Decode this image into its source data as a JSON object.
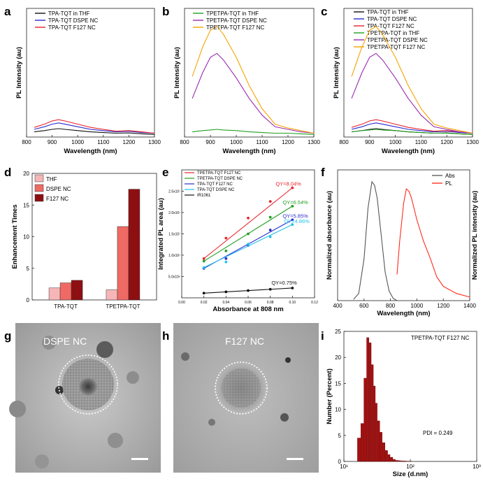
{
  "figure": {
    "labels": {
      "a": "a",
      "b": "b",
      "c": "c",
      "d": "d",
      "e": "e",
      "f": "f",
      "g": "g",
      "h": "h",
      "i": "i"
    }
  },
  "colors": {
    "black": "#111111",
    "blue": "#2a2ad0",
    "red": "#e8232a",
    "green": "#22a022",
    "purple": "#9b2bb0",
    "orange": "#f5a300",
    "lightblue": "#22c2e8",
    "thf_bar": "#f6b6b8",
    "dspe_bar": "#ef6a64",
    "f127_bar": "#8e0f12",
    "hist": "#a81010",
    "abs": "#555555",
    "pl": "#ff2a1a"
  },
  "chart_data": [
    {
      "panel": "a",
      "type": "line",
      "xlabel": "Wavelength (nm)",
      "ylabel": "PL Intensity (au)",
      "xlim": [
        800,
        1300
      ],
      "ylim": [
        0,
        100
      ],
      "xticks": [
        "800",
        "900",
        "1000",
        "1100",
        "1200",
        "1300"
      ],
      "series": [
        {
          "name": "TPA-TQT in THF",
          "color": "#111111",
          "x": [
            830,
            870,
            900,
            925,
            950,
            1000,
            1050,
            1100,
            1150,
            1200,
            1250,
            1300
          ],
          "values": [
            4,
            5,
            6,
            6.5,
            6,
            5,
            4,
            3.5,
            3,
            3.2,
            2.5,
            2
          ]
        },
        {
          "name": "TPA-TQT DSPE NC",
          "color": "#2a2ad0",
          "x": [
            830,
            870,
            900,
            925,
            950,
            1000,
            1050,
            1100,
            1150,
            1200,
            1250,
            1300
          ],
          "values": [
            6,
            8,
            10,
            11,
            10,
            8,
            6,
            5,
            4,
            4.5,
            3.5,
            3
          ]
        },
        {
          "name": "TPA-TQT F127 NC",
          "color": "#e8232a",
          "x": [
            830,
            870,
            900,
            925,
            950,
            1000,
            1050,
            1100,
            1150,
            1200,
            1250,
            1300
          ],
          "values": [
            7.5,
            10,
            12.5,
            13.5,
            12.5,
            10,
            7.5,
            6,
            4.5,
            5,
            4,
            3
          ]
        }
      ]
    },
    {
      "panel": "b",
      "type": "line",
      "xlabel": "Wavelength (nm)",
      "ylabel": "PL Intensity (au)",
      "xlim": [
        800,
        1300
      ],
      "ylim": [
        0,
        100
      ],
      "xticks": [
        "800",
        "900",
        "1000",
        "1100",
        "1200",
        "1300"
      ],
      "series": [
        {
          "name": "TPETPA-TQT in THF",
          "color": "#22a022",
          "x": [
            830,
            870,
            900,
            925,
            950,
            1000,
            1050,
            1100,
            1150,
            1200,
            1250,
            1300
          ],
          "values": [
            4,
            5,
            5.5,
            6,
            5.5,
            5,
            4,
            3.5,
            3,
            3,
            2.5,
            2
          ]
        },
        {
          "name": "TPETPA-TQT DSPE NC",
          "color": "#9b2bb0",
          "x": [
            830,
            870,
            900,
            925,
            950,
            1000,
            1050,
            1100,
            1150,
            1200,
            1250,
            1300
          ],
          "values": [
            30,
            50,
            62,
            65,
            60,
            46,
            30,
            17,
            8,
            6,
            4,
            3
          ]
        },
        {
          "name": "TPETPA-TQT F127 NC",
          "color": "#f5a300",
          "x": [
            830,
            870,
            900,
            925,
            950,
            1000,
            1050,
            1100,
            1150,
            1200,
            1250,
            1300
          ],
          "values": [
            47,
            70,
            83,
            86,
            80,
            62,
            40,
            22,
            10,
            7,
            5,
            3
          ]
        }
      ]
    },
    {
      "panel": "c",
      "type": "line",
      "xlabel": "Wavelength (nm)",
      "ylabel": "PL Intensity (au)",
      "xlim": [
        800,
        1300
      ],
      "ylim": [
        0,
        100
      ],
      "xticks": [
        "800",
        "900",
        "1000",
        "1100",
        "1200",
        "1300"
      ],
      "series": [
        {
          "name": "TPA-TQT in THF",
          "color": "#111111",
          "x": [
            830,
            870,
            900,
            925,
            950,
            1000,
            1050,
            1100,
            1150,
            1200,
            1250,
            1300
          ],
          "values": [
            4,
            5,
            6,
            6.5,
            6,
            5,
            4,
            3.5,
            3,
            3.2,
            2.5,
            2
          ]
        },
        {
          "name": "TPA-TQT DSPE NC",
          "color": "#2a2ad0",
          "x": [
            830,
            870,
            900,
            925,
            950,
            1000,
            1050,
            1100,
            1150,
            1200,
            1250,
            1300
          ],
          "values": [
            6,
            8,
            10,
            11,
            10,
            8,
            6,
            5,
            4,
            4.5,
            3.5,
            3
          ]
        },
        {
          "name": "TPA-TQT F127 NC",
          "color": "#e8232a",
          "x": [
            830,
            870,
            900,
            925,
            950,
            1000,
            1050,
            1100,
            1150,
            1200,
            1250,
            1300
          ],
          "values": [
            7.5,
            10,
            12.5,
            13.5,
            12.5,
            10,
            7.5,
            6,
            4.5,
            5,
            4,
            3
          ]
        },
        {
          "name": "TPETPA-TQT in THF",
          "color": "#22a022",
          "x": [
            830,
            870,
            900,
            925,
            950,
            1000,
            1050,
            1100,
            1150,
            1200,
            1250,
            1300
          ],
          "values": [
            4,
            5,
            5.5,
            6,
            5.5,
            5,
            4,
            3.5,
            3,
            3,
            2.5,
            2
          ]
        },
        {
          "name": "TPETPA-TQT DSPE NC",
          "color": "#9b2bb0",
          "x": [
            830,
            870,
            900,
            925,
            950,
            1000,
            1050,
            1100,
            1150,
            1200,
            1250,
            1300
          ],
          "values": [
            30,
            50,
            62,
            65,
            60,
            46,
            30,
            17,
            8,
            6,
            4,
            3
          ]
        },
        {
          "name": "TPETPA-TQT F127 NC",
          "color": "#f5a300",
          "x": [
            830,
            870,
            900,
            925,
            950,
            1000,
            1050,
            1100,
            1150,
            1200,
            1250,
            1300
          ],
          "values": [
            47,
            70,
            83,
            86,
            80,
            62,
            40,
            22,
            10,
            7,
            5,
            3
          ]
        }
      ]
    },
    {
      "panel": "d",
      "type": "bar",
      "ylabel": "Enhancement Times",
      "ylim": [
        0,
        20
      ],
      "yticks": [
        "0",
        "5",
        "10",
        "15",
        "20"
      ],
      "categories": [
        "TPA-TQT",
        "TPETPA-TQT"
      ],
      "series": [
        {
          "name": "THF",
          "color": "#f6b6b8",
          "values": [
            1.9,
            1.6
          ]
        },
        {
          "name": "DSPE NC",
          "color": "#ef6a64",
          "values": [
            2.7,
            11.6
          ]
        },
        {
          "name": "F127 NC",
          "color": "#8e0f12",
          "values": [
            3.1,
            17.5
          ]
        }
      ]
    },
    {
      "panel": "e",
      "type": "scatter",
      "xlabel": "Absorbance at 808 nm",
      "ylabel": "Integrated PL area (au)",
      "xlim": [
        0.0,
        0.12
      ],
      "ylim": [
        0,
        30000000
      ],
      "xticks": [
        "0.00",
        "0.02",
        "0.04",
        "0.06",
        "0.08",
        "0.10",
        "0.12"
      ],
      "yticks": [
        "5.0x10⁶",
        "1.0x10⁷",
        "1.5x10⁷",
        "2.0x10⁷",
        "2.5x10⁷"
      ],
      "series": [
        {
          "name": "TPETPA-TQT F127 NC",
          "color": "#e8232a",
          "x": [
            0.02,
            0.04,
            0.06,
            0.08,
            0.1
          ],
          "values": [
            9200000,
            14000000,
            18700000,
            22600000,
            25800000
          ],
          "qy": "QY=8.04%"
        },
        {
          "name": "TPETPA-TQT DSPE NC",
          "color": "#22a022",
          "x": [
            0.02,
            0.04,
            0.06,
            0.08,
            0.1
          ],
          "values": [
            8600000,
            11000000,
            15000000,
            18900000,
            21500000
          ],
          "qy": "QY=6.54%"
        },
        {
          "name": "TPA-TQT F127 NC",
          "color": "#2a2ad0",
          "x": [
            0.02,
            0.04,
            0.06,
            0.08,
            0.1
          ],
          "values": [
            6900000,
            9200000,
            12300000,
            15900000,
            18300000
          ],
          "qy": "QY=5.85%"
        },
        {
          "name": "TPA-TQT DSPE NC",
          "color": "#22c2e8",
          "x": [
            0.02,
            0.04,
            0.06,
            0.08,
            0.1
          ],
          "values": [
            7100000,
            8400000,
            12600000,
            14300000,
            17200000
          ],
          "qy": "QY=4.86%"
        },
        {
          "name": "IR1061",
          "color": "#111111",
          "x": [
            0.02,
            0.04,
            0.06,
            0.08,
            0.1
          ],
          "values": [
            1100000,
            1400000,
            1700000,
            2000000,
            2300000
          ],
          "qy": "QY=0.75%"
        }
      ]
    },
    {
      "panel": "f",
      "type": "line",
      "xlabel": "Wavelength (nm)",
      "ylabel": "Normalized absorbance (au)",
      "ylabel2": "Normalized PL intensity (au)",
      "xlim": [
        400,
        1400
      ],
      "ylim": [
        0,
        1.1
      ],
      "xticks": [
        "400",
        "600",
        "800",
        "1000",
        "1200",
        "1400"
      ],
      "series": [
        {
          "name": "Abs",
          "color": "#555555",
          "x": [
            520,
            560,
            600,
            630,
            660,
            680,
            700,
            730,
            760,
            790,
            820,
            850
          ],
          "values": [
            0.01,
            0.06,
            0.35,
            0.78,
            1.0,
            0.97,
            0.86,
            0.55,
            0.24,
            0.08,
            0.02,
            0.0
          ]
        },
        {
          "name": "PL",
          "color": "#ff2a1a",
          "x": [
            850,
            870,
            900,
            920,
            940,
            960,
            1000,
            1050,
            1100,
            1150,
            1200,
            1300,
            1400
          ],
          "values": [
            0.22,
            0.5,
            0.82,
            0.94,
            0.92,
            0.86,
            0.68,
            0.5,
            0.36,
            0.2,
            0.12,
            0.06,
            0.03
          ]
        }
      ]
    },
    {
      "panel": "i",
      "type": "bar",
      "title": "TPETPA-TQT F127 NC",
      "xlabel": "Size (d.nm)",
      "ylabel": "Number (Percent)",
      "xscale": "log",
      "xlim": [
        10,
        1000
      ],
      "ylim": [
        0,
        25
      ],
      "xticks": [
        "10¹",
        "10²",
        "10³"
      ],
      "yticks": [
        "0",
        "5",
        "10",
        "15",
        "20",
        "25"
      ],
      "annotation": "PDI = 0.249",
      "categories": [
        "16",
        "18",
        "20",
        "22",
        "24",
        "26",
        "28",
        "30",
        "32",
        "35",
        "38",
        "42",
        "46",
        "50",
        "55",
        "60",
        "66",
        "72",
        "79",
        "87",
        "96"
      ],
      "values": [
        4.5,
        7.3,
        16,
        23.8,
        22.8,
        18.6,
        14.5,
        11.2,
        7.8,
        5.6,
        3.6,
        2.1,
        1.3,
        0.8,
        0.4,
        0.2,
        0.15,
        0.1,
        0.08,
        0.05,
        0.03
      ]
    }
  ],
  "tem": [
    {
      "panel": "g",
      "caption": "DSPE NC"
    },
    {
      "panel": "h",
      "caption": "F127 NC"
    }
  ]
}
